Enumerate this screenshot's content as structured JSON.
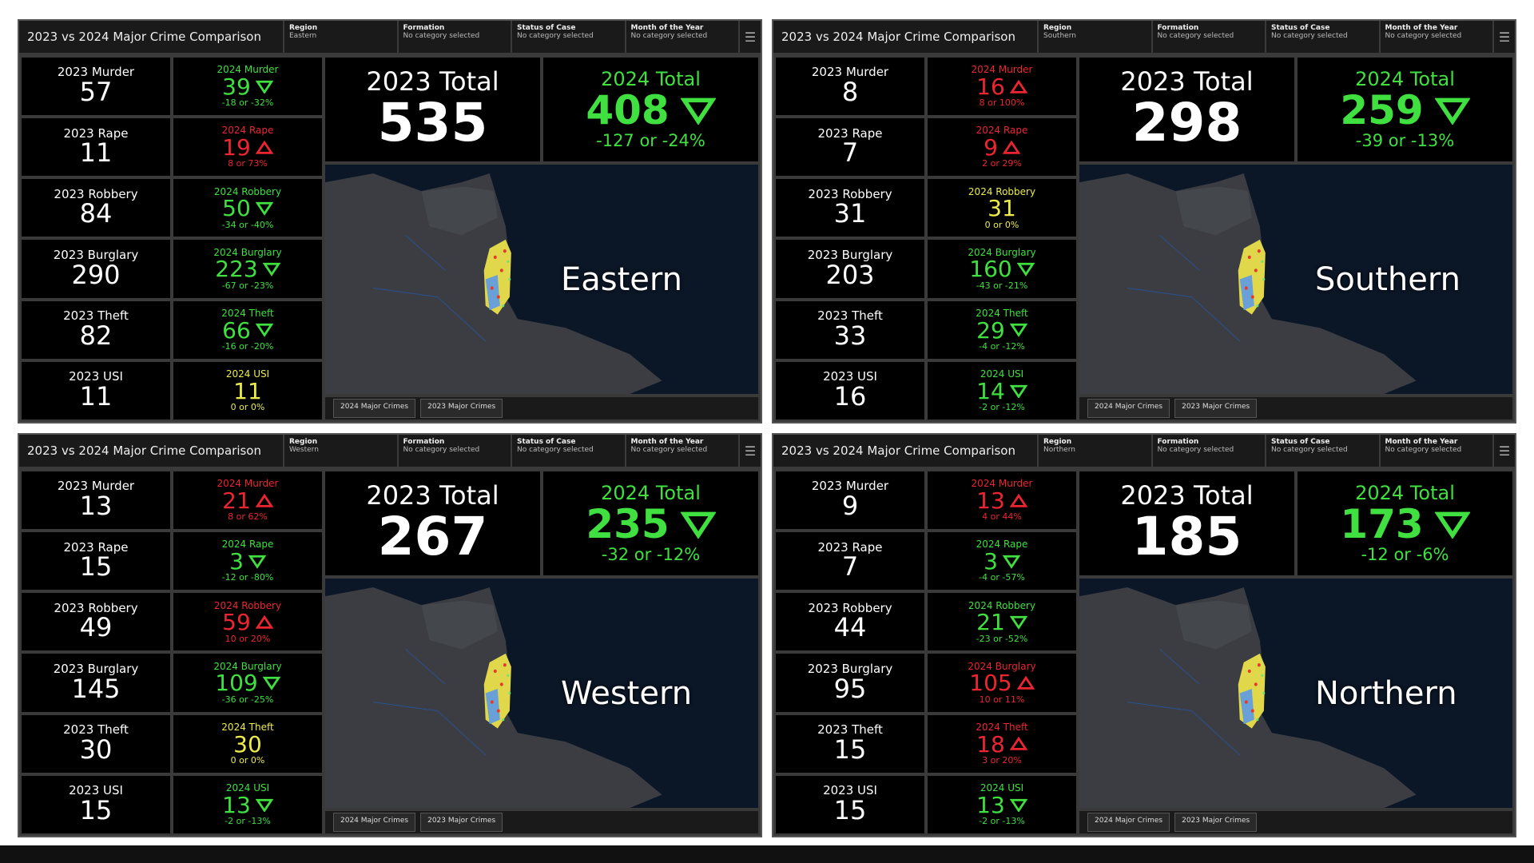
{
  "panels": [
    {
      "header": {
        "title": "2023 vs 2024 Major Crime Comparison",
        "filters": [
          {
            "label": "Region",
            "value": "Eastern"
          },
          {
            "label": "Formation",
            "value": "No category selected"
          },
          {
            "label": "Status of Case",
            "value": "No category selected"
          },
          {
            "label": "Month of the Year",
            "value": "No category selected"
          }
        ]
      },
      "rows": [
        {
          "label_2023": "2023 Murder",
          "value_2023": 57,
          "label_2024": "2024 Murder",
          "value_2024": 39,
          "change": "-18 or -32%"
        },
        {
          "label_2023": "2023 Rape",
          "value_2023": 11,
          "label_2024": "2024 Rape",
          "value_2024": 19,
          "change": "8 or 73%"
        },
        {
          "label_2023": "2023 Robbery",
          "value_2023": 84,
          "label_2024": "2024 Robbery",
          "value_2024": 50,
          "change": "-34 or -40%"
        },
        {
          "label_2023": "2023 Burglary",
          "value_2023": 290,
          "label_2024": "2024 Burglary",
          "value_2024": 223,
          "change": "-67 or -23%"
        },
        {
          "label_2023": "2023 Theft",
          "value_2023": 82,
          "label_2024": "2024 Theft",
          "value_2024": 66,
          "change": "-16 or -20%"
        },
        {
          "label_2023": "2023 USI",
          "value_2023": 11,
          "label_2024": "2024 USI",
          "value_2024": 11,
          "change": "0 or 0%"
        }
      ],
      "totals": {
        "label_2023": "2023 Total",
        "value_2023": 535,
        "label_2024": "2024 Total",
        "value_2024": 408,
        "change": "-127 or -24%"
      },
      "map": {
        "label": "Eastern",
        "tabs": [
          "2024 Major Crimes",
          "2023 Major Crimes"
        ]
      }
    },
    {
      "header": {
        "title": "2023 vs 2024 Major Crime Comparison",
        "filters": [
          {
            "label": "Region",
            "value": "Southern"
          },
          {
            "label": "Formation",
            "value": "No category selected"
          },
          {
            "label": "Status of Case",
            "value": "No category selected"
          },
          {
            "label": "Month of the Year",
            "value": "No category selected"
          }
        ]
      },
      "rows": [
        {
          "label_2023": "2023 Murder",
          "value_2023": 8,
          "label_2024": "2024 Murder",
          "value_2024": 16,
          "change": "8 or 100%"
        },
        {
          "label_2023": "2023 Rape",
          "value_2023": 7,
          "label_2024": "2024 Rape",
          "value_2024": 9,
          "change": "2 or 29%"
        },
        {
          "label_2023": "2023 Robbery",
          "value_2023": 31,
          "label_2024": "2024 Robbery",
          "value_2024": 31,
          "change": "0 or 0%"
        },
        {
          "label_2023": "2023 Burglary",
          "value_2023": 203,
          "label_2024": "2024 Burglary",
          "value_2024": 160,
          "change": "-43 or -21%"
        },
        {
          "label_2023": "2023 Theft",
          "value_2023": 33,
          "label_2024": "2024 Theft",
          "value_2024": 29,
          "change": "-4 or -12%"
        },
        {
          "label_2023": "2023 USI",
          "value_2023": 16,
          "label_2024": "2024 USI",
          "value_2024": 14,
          "change": "-2 or -12%"
        }
      ],
      "totals": {
        "label_2023": "2023 Total",
        "value_2023": 298,
        "label_2024": "2024 Total",
        "value_2024": 259,
        "change": "-39 or -13%"
      },
      "map": {
        "label": "Southern",
        "tabs": [
          "2024 Major Crimes",
          "2023 Major Crimes"
        ]
      }
    },
    {
      "header": {
        "title": "2023 vs 2024 Major Crime Comparison",
        "filters": [
          {
            "label": "Region",
            "value": "Western"
          },
          {
            "label": "Formation",
            "value": "No category selected"
          },
          {
            "label": "Status of Case",
            "value": "No category selected"
          },
          {
            "label": "Month of the Year",
            "value": "No category selected"
          }
        ]
      },
      "rows": [
        {
          "label_2023": "2023 Murder",
          "value_2023": 13,
          "label_2024": "2024 Murder",
          "value_2024": 21,
          "change": "8 or 62%"
        },
        {
          "label_2023": "2023 Rape",
          "value_2023": 15,
          "label_2024": "2024 Rape",
          "value_2024": 3,
          "change": "-12 or -80%"
        },
        {
          "label_2023": "2023 Robbery",
          "value_2023": 49,
          "label_2024": "2024 Robbery",
          "value_2024": 59,
          "change": "10 or 20%"
        },
        {
          "label_2023": "2023 Burglary",
          "value_2023": 145,
          "label_2024": "2024 Burglary",
          "value_2024": 109,
          "change": "-36 or -25%"
        },
        {
          "label_2023": "2023 Theft",
          "value_2023": 30,
          "label_2024": "2024 Theft",
          "value_2024": 30,
          "change": "0 or 0%"
        },
        {
          "label_2023": "2023 USI",
          "value_2023": 15,
          "label_2024": "2024 USI",
          "value_2024": 13,
          "change": "-2 or -13%"
        }
      ],
      "totals": {
        "label_2023": "2023 Total",
        "value_2023": 267,
        "label_2024": "2024 Total",
        "value_2024": 235,
        "change": "-32 or -12%"
      },
      "map": {
        "label": "Western",
        "tabs": [
          "2024 Major Crimes",
          "2023 Major Crimes"
        ]
      }
    },
    {
      "header": {
        "title": "2023 vs 2024 Major Crime Comparison",
        "filters": [
          {
            "label": "Region",
            "value": "Northern"
          },
          {
            "label": "Formation",
            "value": "No category selected"
          },
          {
            "label": "Status of Case",
            "value": "No category selected"
          },
          {
            "label": "Month of the Year",
            "value": "No category selected"
          }
        ]
      },
      "rows": [
        {
          "label_2023": "2023 Murder",
          "value_2023": 9,
          "label_2024": "2024 Murder",
          "value_2024": 13,
          "change": "4 or 44%"
        },
        {
          "label_2023": "2023 Rape",
          "value_2023": 7,
          "label_2024": "2024 Rape",
          "value_2024": 3,
          "change": "-4 or -57%"
        },
        {
          "label_2023": "2023 Robbery",
          "value_2023": 44,
          "label_2024": "2024 Robbery",
          "value_2024": 21,
          "change": "-23 or -52%"
        },
        {
          "label_2023": "2023 Burglary",
          "value_2023": 95,
          "label_2024": "2024 Burglary",
          "value_2024": 105,
          "change": "10 or 11%"
        },
        {
          "label_2023": "2023 Theft",
          "value_2023": 15,
          "label_2024": "2024 Theft",
          "value_2024": 18,
          "change": "3 or 20%"
        },
        {
          "label_2023": "2023 USI",
          "value_2023": 15,
          "label_2024": "2024 USI",
          "value_2024": 13,
          "change": "-2 or -13%"
        }
      ],
      "totals": {
        "label_2023": "2023 Total",
        "value_2023": 185,
        "label_2024": "2024 Total",
        "value_2024": 173,
        "change": "-12 or -6%"
      },
      "map": {
        "label": "Northern",
        "tabs": [
          "2024 Major Crimes",
          "2023 Major Crimes"
        ]
      }
    }
  ]
}
